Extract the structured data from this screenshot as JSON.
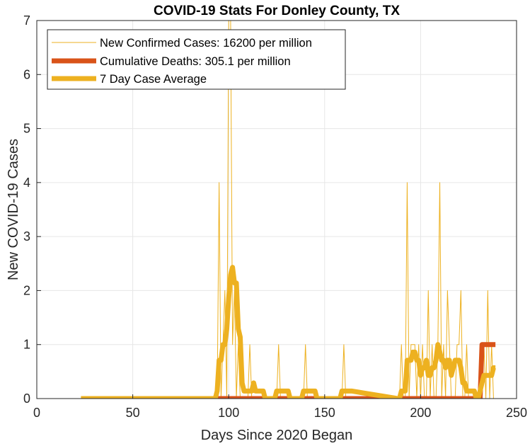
{
  "chart_data": {
    "type": "line",
    "title": "COVID-19 Stats For Donley County, TX",
    "xlabel": "Days Since 2020 Began",
    "ylabel": "New COVID-19 Cases",
    "xlim": [
      0,
      250
    ],
    "ylim": [
      0,
      7
    ],
    "xticks": [
      "0",
      "50",
      "100",
      "150",
      "200",
      "250"
    ],
    "yticks": [
      "0",
      "1",
      "2",
      "3",
      "4",
      "5",
      "6",
      "7"
    ],
    "grid": true,
    "legend_position": "top-left",
    "colors": {
      "new_cases": "#EDB120",
      "deaths": "#D95319",
      "average": "#EDB120",
      "grid": "#e6e6e6",
      "axis": "#262626"
    },
    "series": [
      {
        "name": "New Confirmed Cases: 16200 per million",
        "style": "thin",
        "x": [
          23,
          93,
          94,
          95,
          96,
          97,
          98,
          99,
          100,
          101,
          102,
          103,
          104,
          105,
          106,
          107,
          108,
          109,
          110,
          111,
          112,
          113,
          114,
          115,
          116,
          117,
          118,
          119,
          120,
          121,
          122,
          123,
          124,
          125,
          126,
          127,
          128,
          129,
          130,
          131,
          132,
          133,
          134,
          135,
          136,
          137,
          138,
          139,
          140,
          141,
          142,
          143,
          144,
          145,
          146,
          147,
          148,
          149,
          150,
          151,
          152,
          153,
          154,
          155,
          156,
          157,
          158,
          159,
          160,
          161,
          162,
          163,
          164,
          188,
          189,
          190,
          191,
          192,
          193,
          194,
          195,
          196,
          197,
          198,
          199,
          200,
          201,
          202,
          203,
          204,
          205,
          206,
          207,
          208,
          209,
          210,
          211,
          212,
          213,
          214,
          215,
          216,
          217,
          218,
          219,
          220,
          221,
          222,
          223,
          224,
          225,
          226,
          227,
          228,
          229,
          230,
          231,
          232,
          233,
          234,
          235,
          236,
          237,
          238,
          239
        ],
        "y": [
          0,
          0,
          0,
          4,
          0,
          1,
          2,
          0,
          7,
          7,
          1,
          2,
          0,
          1,
          0,
          0,
          0,
          0,
          0,
          1,
          0,
          0,
          0,
          0,
          0,
          0,
          0,
          0,
          0,
          0,
          0,
          0,
          0,
          0,
          1,
          0,
          0,
          0,
          0,
          0,
          0,
          0,
          0,
          0,
          0,
          0,
          0,
          0,
          1,
          0,
          0,
          0,
          0,
          0,
          0,
          0,
          0,
          0,
          0,
          0,
          0,
          0,
          0,
          0,
          0,
          0,
          0,
          0,
          1,
          0,
          0,
          0,
          0,
          0,
          0,
          1,
          0,
          0,
          4,
          0,
          1,
          1,
          1,
          0,
          1,
          0,
          1,
          0,
          0,
          2,
          0,
          1,
          0,
          0,
          1,
          4,
          0,
          1,
          0,
          2,
          1,
          0,
          0,
          0,
          1,
          1,
          2,
          0,
          0,
          1,
          0,
          0,
          0,
          0,
          0,
          0,
          0,
          0,
          1,
          0,
          2,
          0,
          1,
          0,
          0
        ]
      },
      {
        "name": "Cumulative Deaths: 305.1 per million",
        "style": "thick",
        "x": [
          93,
          231,
          232,
          239
        ],
        "y": [
          0,
          0,
          1,
          1
        ]
      },
      {
        "name": "7 Day Case Average",
        "style": "thick",
        "x": [
          23,
          93,
          94,
          95,
          96,
          97,
          98,
          99,
          100,
          101,
          102,
          103,
          104,
          105,
          106,
          107,
          108,
          109,
          110,
          111,
          112,
          113,
          114,
          115,
          116,
          117,
          118,
          119,
          120,
          121,
          122,
          123,
          124,
          125,
          126,
          127,
          128,
          129,
          130,
          131,
          132,
          133,
          134,
          135,
          136,
          137,
          138,
          139,
          140,
          141,
          142,
          143,
          144,
          145,
          146,
          147,
          148,
          149,
          150,
          151,
          152,
          153,
          154,
          155,
          156,
          157,
          158,
          159,
          160,
          161,
          162,
          163,
          164,
          188,
          189,
          190,
          191,
          192,
          193,
          194,
          195,
          196,
          197,
          198,
          199,
          200,
          201,
          202,
          203,
          204,
          205,
          206,
          207,
          208,
          209,
          210,
          211,
          212,
          213,
          214,
          215,
          216,
          217,
          218,
          219,
          220,
          221,
          222,
          223,
          224,
          225,
          226,
          227,
          228,
          229,
          230,
          231,
          232,
          233,
          234,
          235,
          236,
          237,
          238,
          239
        ],
        "y": [
          0,
          0,
          0.14,
          0.71,
          0.71,
          1.0,
          1.0,
          1.29,
          1.86,
          2.29,
          2.43,
          2.14,
          2.14,
          1.29,
          1.14,
          0.29,
          0.14,
          0.14,
          0.14,
          0.14,
          0.14,
          0.29,
          0.14,
          0.14,
          0.14,
          0.14,
          0.14,
          0,
          0,
          0,
          0,
          0,
          0,
          0.14,
          0.14,
          0.14,
          0.14,
          0.14,
          0.14,
          0.14,
          0,
          0,
          0,
          0,
          0,
          0,
          0,
          0.14,
          0.14,
          0.14,
          0.14,
          0.14,
          0.14,
          0.14,
          0,
          0,
          0,
          0,
          0,
          0,
          0,
          0,
          0,
          0,
          0,
          0,
          0,
          0.14,
          0.14,
          0.14,
          0.14,
          0.14,
          0.14,
          0,
          0,
          0.14,
          0.14,
          0.14,
          0.71,
          0.71,
          0.71,
          0.86,
          0.86,
          0.71,
          0.71,
          0.43,
          0.57,
          0.57,
          0.71,
          0.43,
          0.43,
          0.57,
          0.57,
          0.71,
          1.0,
          0.86,
          0.71,
          0.71,
          0.57,
          0.71,
          0.71,
          0.43,
          0.57,
          0.71,
          0.71,
          0.71,
          0.57,
          0.29,
          0.29,
          0.14,
          0.14,
          0.14,
          0.14,
          0.14,
          0,
          0,
          0.14,
          0.29,
          0.43,
          0.43,
          0.43,
          0.43,
          0.43,
          0.57,
          0.57
        ]
      }
    ]
  }
}
